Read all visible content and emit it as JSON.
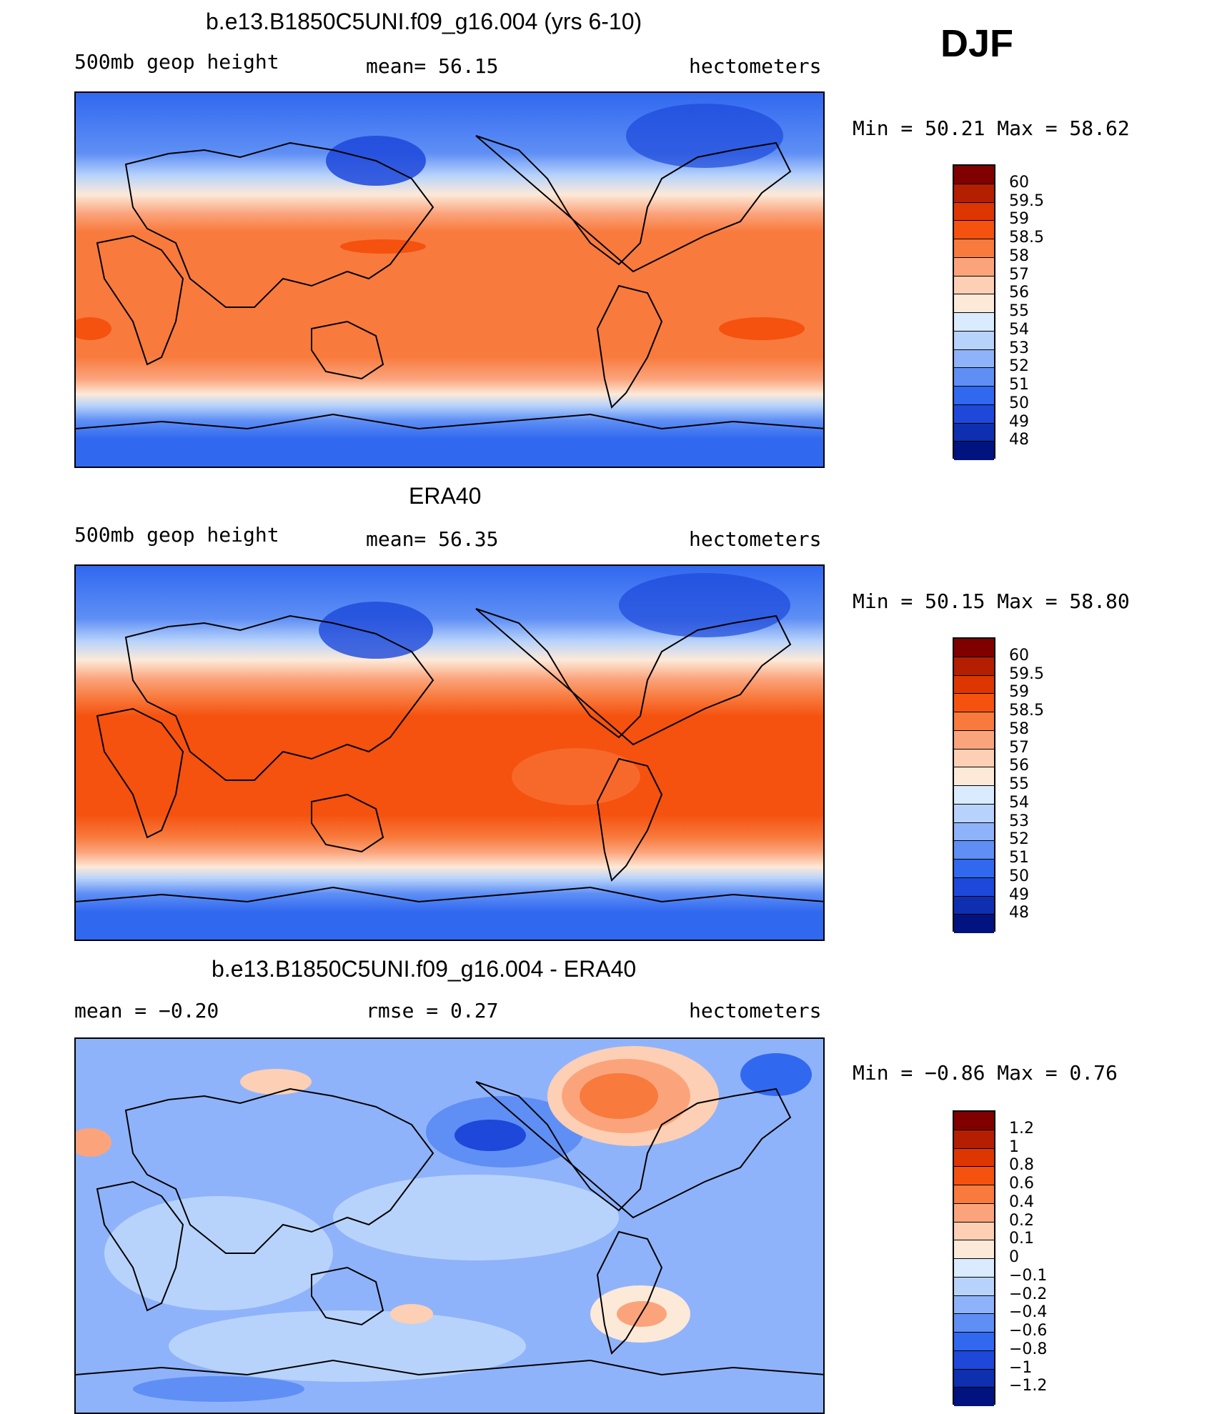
{
  "season": "DJF",
  "panels": [
    {
      "title": "b.e13.B1850C5UNI.f09_g16.004 (yrs 6-10)",
      "left_label": "500mb geop height",
      "center_label": "mean=  56.15",
      "right_label": "hectometers",
      "min_max": "Min =   50.21 Max =   58.62"
    },
    {
      "title": "ERA40",
      "left_label": "500mb geop height",
      "center_label": "mean=  56.35",
      "right_label": "hectometers",
      "min_max": "Min =   50.15 Max =   58.80"
    },
    {
      "title": "b.e13.B1850C5UNI.f09_g16.004 - ERA40",
      "left_label": "mean =  −0.20",
      "center_label": "rmse =    0.27",
      "right_label": "hectometers",
      "min_max": "Min =  −0.86 Max =    0.76"
    }
  ],
  "colorbars": [
    {
      "labels": [
        "60",
        "59.5",
        "59",
        "58.5",
        "58",
        "57",
        "56",
        "55",
        "54",
        "53",
        "52",
        "51",
        "50",
        "49",
        "48"
      ],
      "colors": [
        "#800000",
        "#b31f00",
        "#de3600",
        "#f5510f",
        "#f87a3d",
        "#fba47c",
        "#fdcfb4",
        "#fde9d8",
        "#d9ebfc",
        "#b8d3fb",
        "#8fb3fa",
        "#5f8ff5",
        "#3068f0",
        "#1d48da",
        "#0d2fb0",
        "#00137f"
      ]
    },
    {
      "labels": [
        "60",
        "59.5",
        "59",
        "58.5",
        "58",
        "57",
        "56",
        "55",
        "54",
        "53",
        "52",
        "51",
        "50",
        "49",
        "48"
      ],
      "colors": [
        "#800000",
        "#b31f00",
        "#de3600",
        "#f5510f",
        "#f87a3d",
        "#fba47c",
        "#fdcfb4",
        "#fde9d8",
        "#d9ebfc",
        "#b8d3fb",
        "#8fb3fa",
        "#5f8ff5",
        "#3068f0",
        "#1d48da",
        "#0d2fb0",
        "#00137f"
      ]
    },
    {
      "labels": [
        "1.2",
        "1",
        "0.8",
        "0.6",
        "0.4",
        "0.2",
        "0.1",
        "0",
        "−0.1",
        "−0.2",
        "−0.4",
        "−0.6",
        "−0.8",
        "−1",
        "−1.2"
      ],
      "colors": [
        "#800000",
        "#b31f00",
        "#de3600",
        "#f5510f",
        "#f87a3d",
        "#fba47c",
        "#fdcfb4",
        "#fde9d8",
        "#d9ebfc",
        "#b8d3fb",
        "#8fb3fa",
        "#5f8ff5",
        "#3068f0",
        "#1d48da",
        "#0d2fb0",
        "#00137f"
      ]
    }
  ]
}
